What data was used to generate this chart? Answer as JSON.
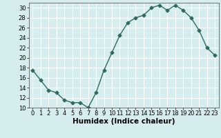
{
  "x": [
    0,
    1,
    2,
    3,
    4,
    5,
    6,
    7,
    8,
    9,
    10,
    11,
    12,
    13,
    14,
    15,
    16,
    17,
    18,
    19,
    20,
    21,
    22,
    23
  ],
  "y": [
    17.5,
    15.5,
    13.5,
    13.0,
    11.5,
    11.0,
    11.0,
    10.0,
    13.0,
    17.5,
    21.0,
    24.5,
    27.0,
    28.0,
    28.5,
    30.0,
    30.5,
    29.5,
    30.5,
    29.5,
    28.0,
    25.5,
    22.0,
    20.5
  ],
  "line_color": "#2e6b5e",
  "marker": "D",
  "marker_size": 2.5,
  "line_width": 1.0,
  "xlabel": "Humidex (Indice chaleur)",
  "xlim": [
    -0.5,
    23.5
  ],
  "ylim": [
    10,
    31
  ],
  "yticks": [
    10,
    12,
    14,
    16,
    18,
    20,
    22,
    24,
    26,
    28,
    30
  ],
  "xticks": [
    0,
    1,
    2,
    3,
    4,
    5,
    6,
    7,
    8,
    9,
    10,
    11,
    12,
    13,
    14,
    15,
    16,
    17,
    18,
    19,
    20,
    21,
    22,
    23
  ],
  "bg_color": "#d5edef",
  "grid_color": "#ffffff",
  "tick_fontsize": 6.0,
  "xlabel_fontsize": 7.5,
  "xlabel_fontweight": "bold"
}
